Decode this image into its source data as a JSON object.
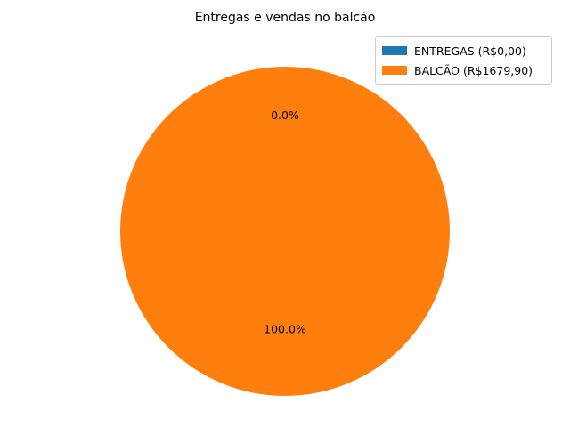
{
  "chart_data": {
    "type": "pie",
    "title": "Entregas e vendas no balcão",
    "slices": [
      {
        "name": "ENTREGAS (R$0,00)",
        "value": 0.0,
        "pct_label": "0.0%",
        "color": "#1f77b4"
      },
      {
        "name": "BALCÃO (R$1679,90)",
        "value": 1679.9,
        "pct_label": "100.0%",
        "color": "#ff7f0e"
      }
    ],
    "legend": {
      "placement": "top-right",
      "entries": [
        "ENTREGAS (R$0,00)",
        "BALCÃO (R$1679,90)"
      ]
    }
  }
}
